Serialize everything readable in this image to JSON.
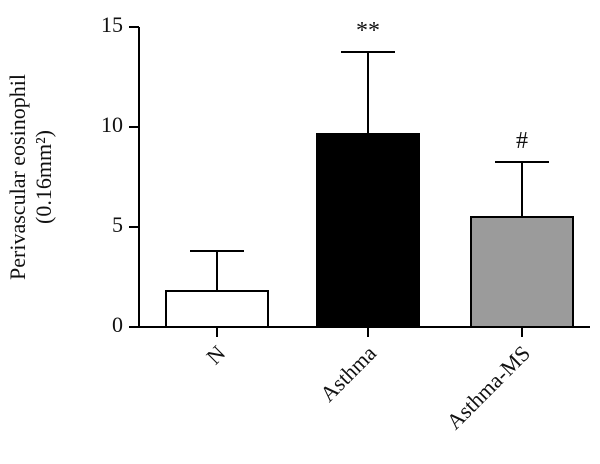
{
  "chart_data": {
    "type": "bar",
    "categories": [
      "N",
      "Asthma",
      "Asthma-MS"
    ],
    "values": [
      1.8,
      9.65,
      5.5
    ],
    "errors": [
      2.0,
      4.1,
      2.75
    ],
    "significance": [
      "",
      "**",
      "#"
    ],
    "bar_colors": [
      "#ffffff",
      "#000000",
      "#9b9b9b"
    ],
    "ylabel_lines": [
      "Perivascular eosinophil",
      "(0.16mm²)"
    ],
    "yticks": [
      "0",
      "5",
      "10",
      "15"
    ],
    "ylim": [
      0,
      15
    ]
  }
}
